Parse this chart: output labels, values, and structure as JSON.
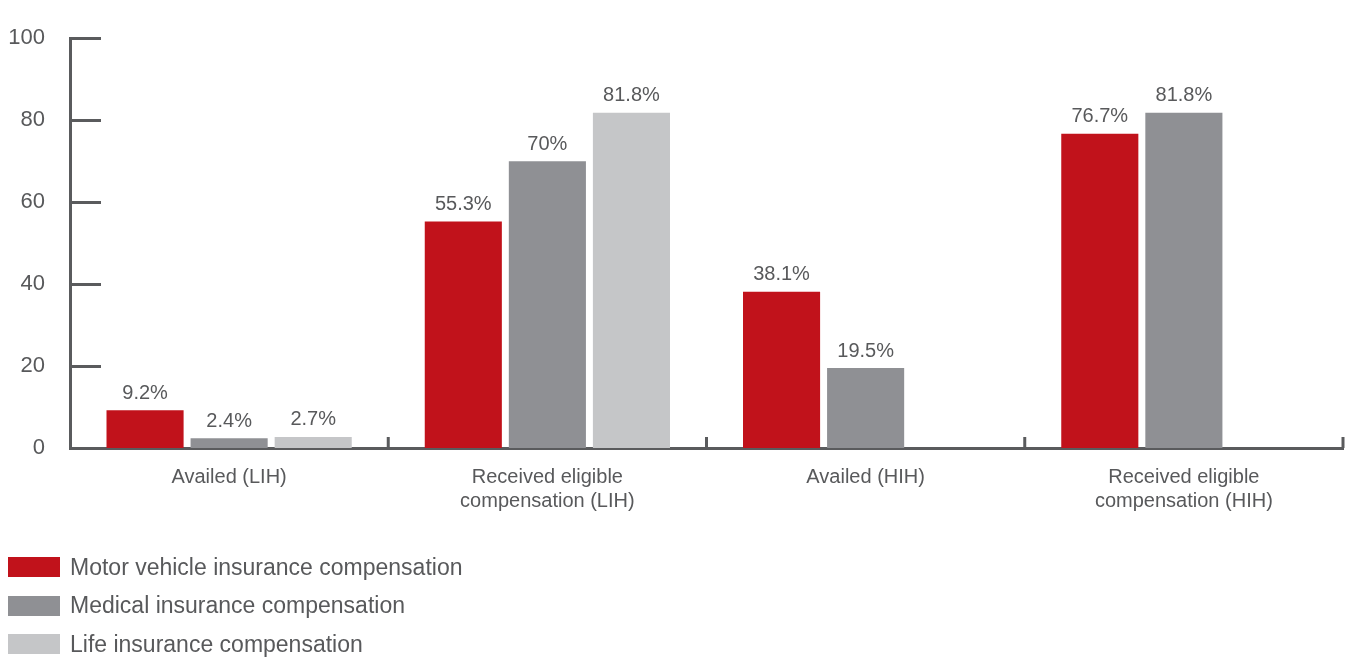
{
  "chart_data": {
    "type": "bar",
    "categories": [
      "Availed (LIH)",
      "Received eligible compensation (LIH)",
      "Availed (HIH)",
      "Received eligible compensation (HIH)"
    ],
    "series": [
      {
        "name": "Motor vehicle insurance compensation",
        "color": "#c1121b",
        "values": [
          9.2,
          55.3,
          38.1,
          76.7
        ],
        "value_labels": [
          "9.2%",
          "55.3%",
          "38.1%",
          "76.7%"
        ]
      },
      {
        "name": "Medical insurance compensation",
        "color": "#8f9094",
        "values": [
          2.4,
          70,
          19.5,
          81.8
        ],
        "value_labels": [
          "2.4%",
          "70%",
          "19.5%",
          "81.8%"
        ]
      },
      {
        "name": "Life insurance compensation",
        "color": "#c5c6c8",
        "values": [
          2.7,
          81.8,
          null,
          null
        ],
        "value_labels": [
          "2.7%",
          "81.8%",
          null,
          null
        ]
      }
    ],
    "ylim": [
      0,
      100
    ],
    "yticks": [
      0,
      20,
      40,
      60,
      80,
      100
    ],
    "legend": "bottom left"
  }
}
